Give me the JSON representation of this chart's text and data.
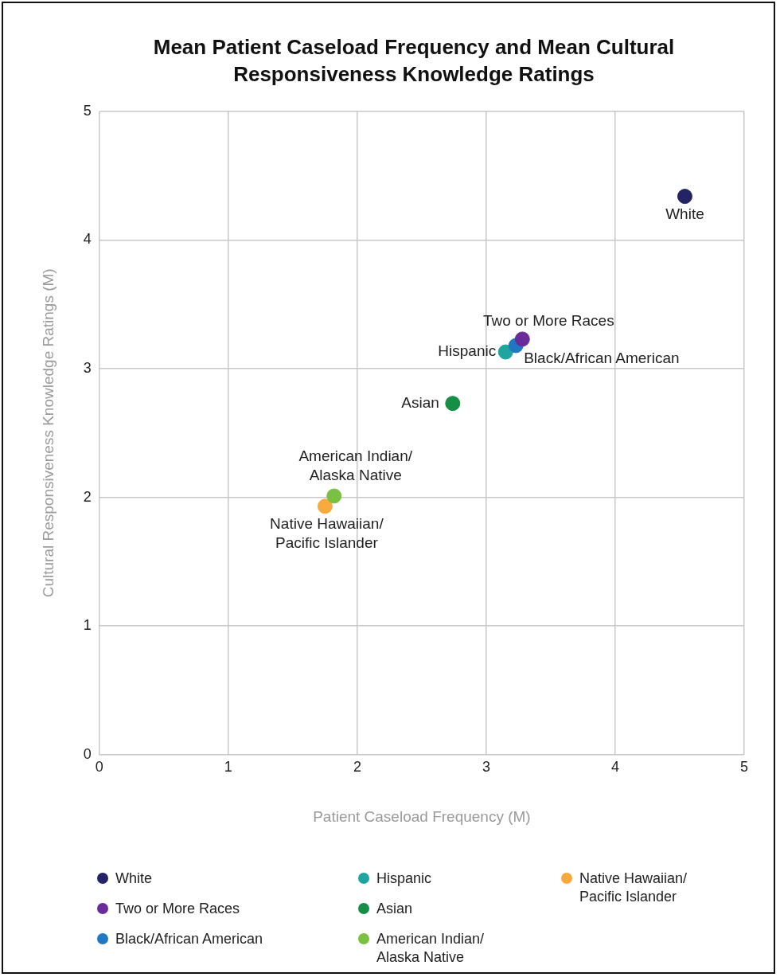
{
  "chart_data": {
    "type": "scatter",
    "title": "Mean Patient Caseload Frequency and Mean Cultural Responsiveness Knowledge Ratings",
    "xlabel": "Patient Caseload Frequency (M)",
    "ylabel": "Cultural Responsiveness Knowledge Ratings (M)",
    "xlim": [
      0,
      5
    ],
    "ylim": [
      0,
      5
    ],
    "xticks": [
      0,
      1,
      2,
      3,
      4,
      5
    ],
    "yticks": [
      0,
      1,
      2,
      3,
      4,
      5
    ],
    "grid": true,
    "legend": "bottom",
    "marker": "circle",
    "series": [
      {
        "name": "White",
        "color": "#232365",
        "x": [
          4.54
        ],
        "values": [
          4.34
        ]
      },
      {
        "name": "Two or More Races",
        "color": "#6a2c9b",
        "x": [
          3.28
        ],
        "values": [
          3.23
        ]
      },
      {
        "name": "Black/African American",
        "color": "#1f78c1",
        "x": [
          3.23
        ],
        "values": [
          3.18
        ]
      },
      {
        "name": "Hispanic",
        "color": "#1fa59f",
        "x": [
          3.15
        ],
        "values": [
          3.13
        ]
      },
      {
        "name": "Asian",
        "color": "#148f45",
        "x": [
          2.74
        ],
        "values": [
          2.73
        ]
      },
      {
        "name": "American Indian/Alaska Native",
        "color": "#7ac143",
        "x": [
          1.82
        ],
        "values": [
          2.01
        ]
      },
      {
        "name": "Native Hawaiian/Pacific Islander",
        "color": "#f8aa3c",
        "x": [
          1.75
        ],
        "values": [
          1.93
        ]
      }
    ]
  }
}
